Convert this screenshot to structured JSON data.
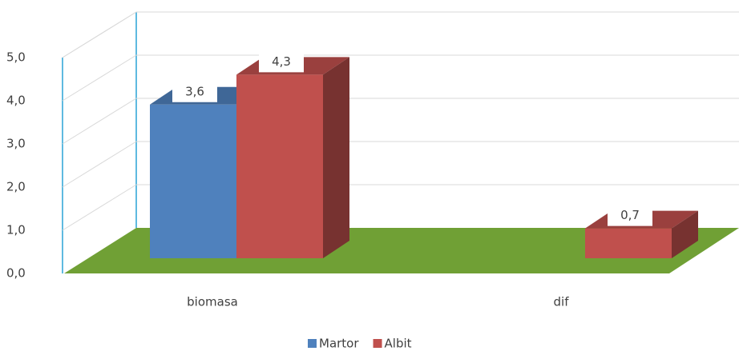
{
  "chart_data": {
    "type": "bar3d",
    "categories": [
      "biomasa",
      "dif"
    ],
    "series": [
      {
        "name": "Martor",
        "color": "#4f81bd",
        "values": [
          3.6,
          null
        ],
        "value_labels": [
          "3,6",
          null
        ]
      },
      {
        "name": "Albit",
        "color": "#c0504d",
        "values": [
          4.3,
          0.7
        ],
        "value_labels": [
          "4,3",
          "0,7"
        ]
      }
    ],
    "ylim": [
      0,
      5
    ],
    "yticks": [
      {
        "value": 0,
        "label": "0,0"
      },
      {
        "value": 1,
        "label": "1,0"
      },
      {
        "value": 2,
        "label": "2,0"
      },
      {
        "value": 3,
        "label": "3,0"
      },
      {
        "value": 4,
        "label": "4,0"
      },
      {
        "value": 5,
        "label": "5,0"
      }
    ],
    "grid": true,
    "legend": "bottom",
    "floor_color": "#70a035"
  }
}
